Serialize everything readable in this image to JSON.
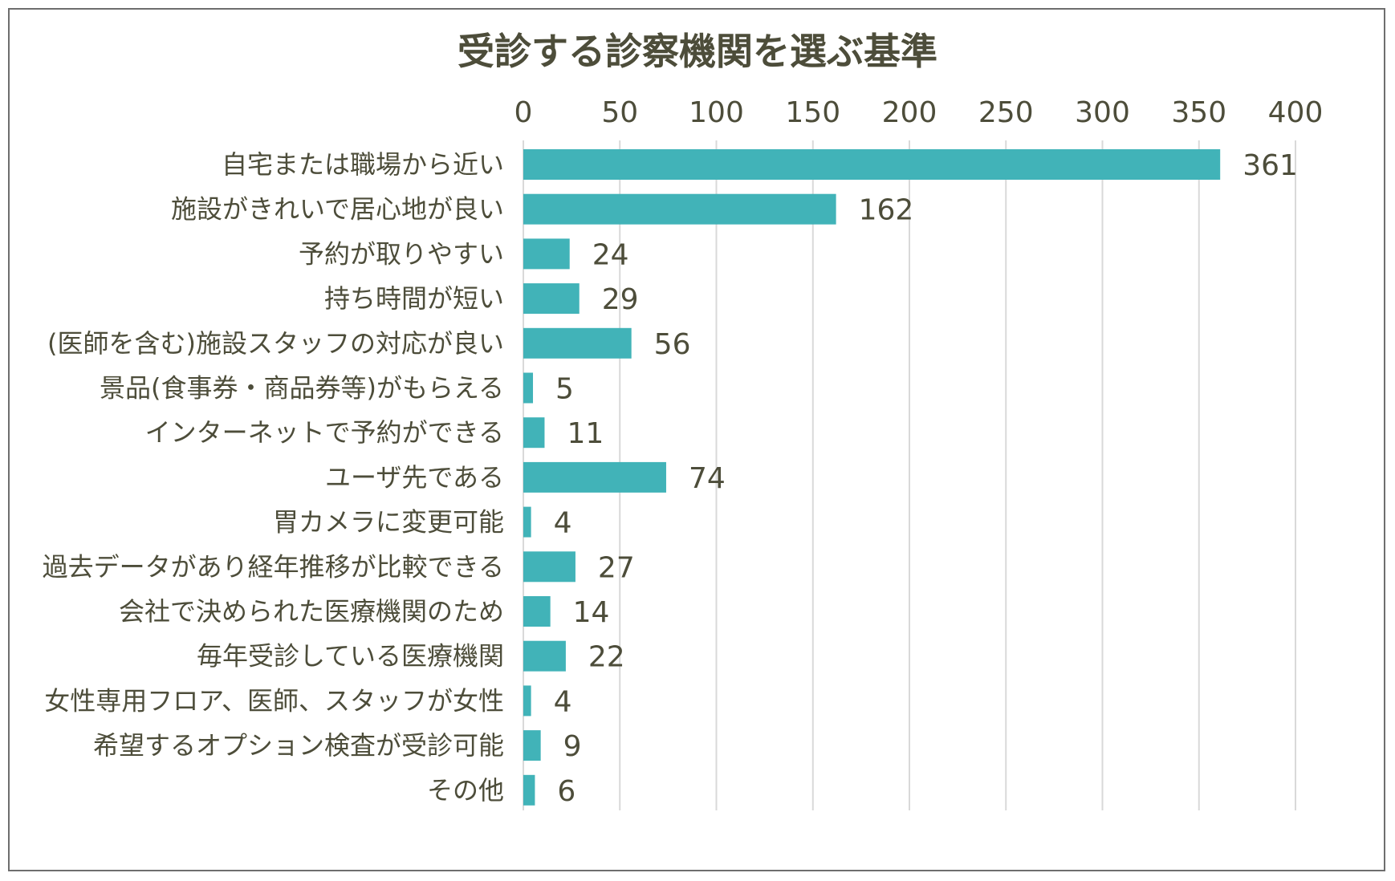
{
  "chart_data": {
    "type": "bar",
    "orientation": "horizontal",
    "title": "受診する診察機関を選ぶ基準",
    "xlim": [
      0,
      400
    ],
    "xticks": [
      0,
      50,
      100,
      150,
      200,
      250,
      300,
      350,
      400
    ],
    "xtick_labels": [
      "0",
      "50",
      "100",
      "150",
      "200",
      "250",
      "300",
      "350",
      "400"
    ],
    "axis_position": "top",
    "grid": true,
    "bar_color": "#41b3b8",
    "categories": [
      "自宅または職場から近い",
      "施設がきれいで居心地が良い",
      "予約が取りやすい",
      "持ち時間が短い",
      "(医師を含む)施設スタッフの対応が良い",
      "景品(食事券・商品券等)がもらえる",
      "インターネットで予約ができる",
      "ユーザ先である",
      "胃カメラに変更可能",
      "過去データがあり経年推移が比較できる",
      "会社で決められた医療機関のため",
      "毎年受診している医療機関",
      "女性専用フロア、医師、スタッフが女性",
      "希望するオプション検査が受診可能",
      "その他"
    ],
    "values": [
      361,
      162,
      24,
      29,
      56,
      5,
      11,
      74,
      4,
      27,
      14,
      22,
      4,
      9,
      6
    ],
    "value_labels": [
      "361",
      "162",
      "24",
      "29",
      "56",
      "5",
      "11",
      "74",
      "4",
      "27",
      "14",
      "22",
      "4",
      "9",
      "6"
    ]
  }
}
